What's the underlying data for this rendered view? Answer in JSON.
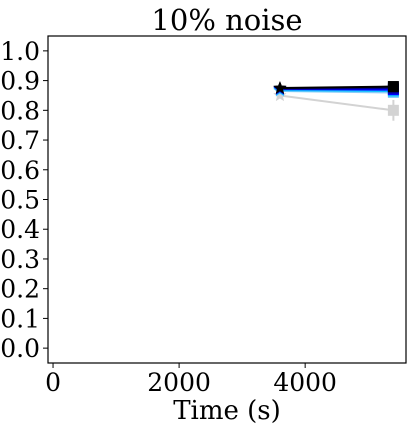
{
  "chart_data": {
    "type": "line",
    "title": "10% noise",
    "xlabel": "Time (s)",
    "ylabel": "",
    "xlim": [
      -80,
      5600
    ],
    "ylim": [
      -0.05,
      1.05
    ],
    "xticks": [
      0,
      2000,
      4000
    ],
    "yticks": [
      0.0,
      0.1,
      0.2,
      0.3,
      0.4,
      0.5,
      0.6,
      0.7,
      0.8,
      0.9,
      1.0
    ],
    "grid": false,
    "legend": "none",
    "series": [
      {
        "color": "#d3d3d3",
        "x": [
          3600,
          5400
        ],
        "y": [
          0.85,
          0.8
        ],
        "yerr": [
          0.0,
          0.035
        ],
        "markers": [
          "star",
          "square"
        ]
      },
      {
        "color": "#87cefa",
        "x": [
          3600,
          5400
        ],
        "y": [
          0.865,
          0.86
        ],
        "yerr": [
          0.0,
          0.0
        ],
        "markers": [
          "star",
          "square"
        ]
      },
      {
        "color": "#00bfff",
        "x": [
          3600,
          5400
        ],
        "y": [
          0.868,
          0.865
        ],
        "yerr": [
          0.0,
          0.0
        ],
        "markers": [
          "star",
          "square"
        ]
      },
      {
        "color": "#1e90ff",
        "x": [
          3600,
          5400
        ],
        "y": [
          0.87,
          0.868
        ],
        "yerr": [
          0.0,
          0.0
        ],
        "markers": [
          "star",
          "square"
        ]
      },
      {
        "color": "#0000ff",
        "x": [
          3600,
          5400
        ],
        "y": [
          0.872,
          0.87
        ],
        "yerr": [
          0.0,
          0.0
        ],
        "markers": [
          "star",
          "square"
        ]
      },
      {
        "color": "#00008b",
        "x": [
          3600,
          5400
        ],
        "y": [
          0.873,
          0.875
        ],
        "yerr": [
          0.0,
          0.0
        ],
        "markers": [
          "star",
          "square"
        ]
      },
      {
        "color": "#000000",
        "x": [
          3600,
          5400
        ],
        "y": [
          0.875,
          0.88
        ],
        "yerr": [
          0.0,
          0.0
        ],
        "markers": [
          "star",
          "square"
        ]
      }
    ]
  }
}
